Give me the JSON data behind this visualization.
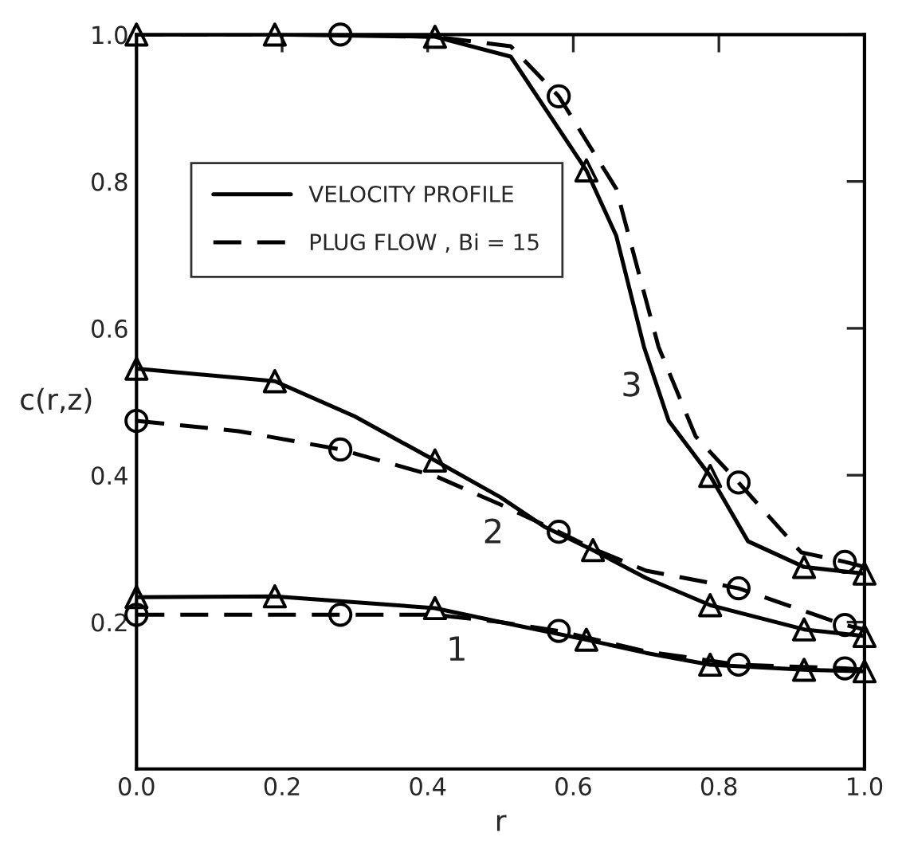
{
  "chart_data": {
    "type": "line",
    "xlabel": "r",
    "ylabel": "c(r,z)",
    "xlim": [
      0,
      1
    ],
    "ylim": [
      0,
      1
    ],
    "xticks": [
      {
        "value": 0,
        "label": "0.0"
      },
      0.2,
      0.4,
      0.6,
      0.8,
      {
        "value": 1,
        "label": "1.0"
      }
    ],
    "yticks": [
      0.2,
      0.4,
      0.6,
      0.8,
      {
        "value": 1,
        "label": "1.0"
      }
    ],
    "grid": false,
    "legend": "top left",
    "annotations": [
      "1",
      "2",
      "3"
    ],
    "series": [
      {
        "type": "line",
        "name": "VELOCITY PROFILE",
        "color": "#000000",
        "line_style": "solid",
        "x": [
          0,
          0.19,
          0.41,
          0.514,
          0.618,
          0.659,
          0.697,
          0.731,
          0.788,
          0.84,
          0.917,
          1.0
        ],
        "values": [
          1.0,
          1.0,
          0.997,
          0.97,
          0.815,
          0.726,
          0.575,
          0.474,
          0.399,
          0.31,
          0.275,
          0.266
        ]
      },
      {
        "type": "line",
        "name": "PLUG FLOW , Bi = 15",
        "color": "#000000",
        "line_style": "dashed",
        "x": [
          0,
          0.28,
          0.41,
          0.514,
          0.58,
          0.659,
          0.717,
          0.768,
          0.827,
          0.913,
          0.973,
          1.0
        ],
        "values": [
          1.0,
          1.0,
          0.997,
          0.984,
          0.916,
          0.79,
          0.575,
          0.453,
          0.39,
          0.295,
          0.282,
          0.275
        ]
      },
      {
        "type": "line",
        "color": "#000000",
        "line_style": "solid",
        "x": [
          0,
          0.19,
          0.3,
          0.41,
          0.5,
          0.56,
          0.627,
          0.7,
          0.788,
          0.917,
          1.0
        ],
        "values": [
          0.545,
          0.528,
          0.48,
          0.42,
          0.37,
          0.33,
          0.298,
          0.26,
          0.223,
          0.19,
          0.181
        ]
      },
      {
        "type": "line",
        "color": "#000000",
        "line_style": "dashed",
        "x": [
          0,
          0.14,
          0.28,
          0.41,
          0.5,
          0.58,
          0.627,
          0.7,
          0.827,
          0.973,
          1.0
        ],
        "values": [
          0.474,
          0.46,
          0.435,
          0.399,
          0.36,
          0.323,
          0.3,
          0.27,
          0.246,
          0.196,
          0.19
        ]
      },
      {
        "type": "line",
        "color": "#000000",
        "line_style": "solid",
        "x": [
          0,
          0.19,
          0.41,
          0.5,
          0.618,
          0.7,
          0.788,
          0.917,
          1.0
        ],
        "values": [
          0.234,
          0.235,
          0.219,
          0.2,
          0.176,
          0.158,
          0.142,
          0.135,
          0.133
        ]
      },
      {
        "type": "line",
        "color": "#000000",
        "line_style": "dashed",
        "x": [
          0,
          0.28,
          0.41,
          0.5,
          0.58,
          0.7,
          0.827,
          0.973,
          1.0
        ],
        "values": [
          0.21,
          0.21,
          0.21,
          0.2,
          0.188,
          0.16,
          0.142,
          0.137,
          0.135
        ]
      },
      {
        "type": "scatter",
        "color": "#000000",
        "marker": "triangle",
        "x": [
          0,
          0.19,
          0.41,
          0.618,
          0.788,
          0.917,
          1.0
        ],
        "values": [
          1.0,
          1.0,
          0.997,
          0.815,
          0.399,
          0.275,
          0.266
        ]
      },
      {
        "type": "scatter",
        "color": "#000000",
        "marker": "circle",
        "x": [
          0.28,
          0.58,
          0.827,
          0.973
        ],
        "values": [
          1.0,
          0.916,
          0.39,
          0.282
        ]
      },
      {
        "type": "scatter",
        "color": "#000000",
        "marker": "triangle",
        "x": [
          0,
          0.19,
          0.41,
          0.627,
          0.788,
          0.917,
          1.0
        ],
        "values": [
          0.545,
          0.528,
          0.42,
          0.298,
          0.223,
          0.19,
          0.181
        ]
      },
      {
        "type": "scatter",
        "color": "#000000",
        "marker": "circle",
        "x": [
          0,
          0.28,
          0.58,
          0.827,
          0.973
        ],
        "values": [
          0.474,
          0.435,
          0.323,
          0.246,
          0.196
        ]
      },
      {
        "type": "scatter",
        "color": "#000000",
        "marker": "triangle",
        "x": [
          0,
          0.19,
          0.41,
          0.618,
          0.788,
          0.917,
          1.0
        ],
        "values": [
          0.234,
          0.235,
          0.219,
          0.176,
          0.142,
          0.135,
          0.133
        ]
      },
      {
        "type": "scatter",
        "color": "#000000",
        "marker": "circle",
        "x": [
          0,
          0.28,
          0.58,
          0.827,
          0.973
        ],
        "values": [
          0.21,
          0.21,
          0.188,
          0.142,
          0.137
        ]
      }
    ]
  }
}
